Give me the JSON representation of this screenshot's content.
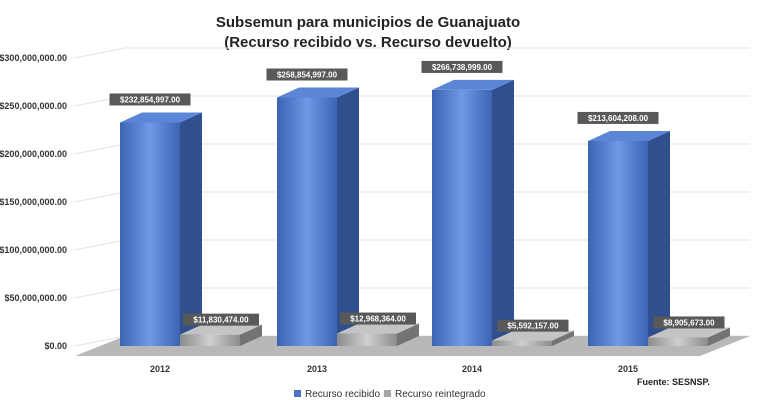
{
  "chart_data": {
    "type": "bar",
    "title": "Subsemun para municipios de Guanajuato",
    "subtitle": "(Recurso recibido vs. Recurso devuelto)",
    "categories": [
      "2012",
      "2013",
      "2014",
      "2015"
    ],
    "series": [
      {
        "name": "Recurso recibido",
        "values": [
          232854997,
          258854997,
          266738999,
          213604208
        ],
        "labels": [
          "$232,854,997.00",
          "$258,854,997.00",
          "$266,738,999.00",
          "$213,604,208.00"
        ],
        "color": "#4a76c9"
      },
      {
        "name": "Recurso reintegrado",
        "values": [
          11830474,
          12968364,
          5592157,
          8905673
        ],
        "labels": [
          "$11,830,474.00",
          "$12,968,364.00",
          "$5,592,157.00",
          "$8,905,673.00"
        ],
        "color": "#a6a6a6"
      }
    ],
    "yticks": [
      "$0.00",
      "$50,000,000.00",
      "$100,000,000.00",
      "$150,000,000.00",
      "$200,000,000.00",
      "$250,000,000.00",
      "$300,000,000.00"
    ],
    "ylim": [
      0,
      300000000
    ],
    "grid": true,
    "legend_position": "bottom",
    "source": "Fuente: SESNSP."
  }
}
